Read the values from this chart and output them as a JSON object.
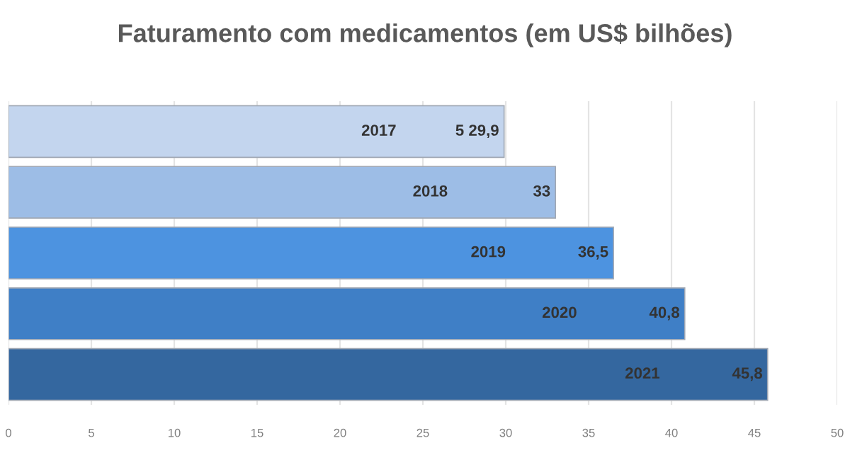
{
  "chart_data": {
    "type": "bar",
    "orientation": "horizontal",
    "title": "Faturamento com medicamentos (em US$ bilhões)",
    "categories": [
      "2017",
      "2018",
      "2019",
      "2020",
      "2021"
    ],
    "values": [
      29.9,
      33,
      36.5,
      40.8,
      45.8
    ],
    "value_labels": [
      "5 29,9",
      "33",
      "36,5",
      "40,8",
      "45,8"
    ],
    "colors": [
      "#c3d5ee",
      "#9dbde6",
      "#4d93e0",
      "#3f7fc6",
      "#34679f"
    ],
    "xlim": [
      0,
      50
    ],
    "xticks": [
      0,
      5,
      10,
      15,
      20,
      25,
      30,
      35,
      40,
      45,
      50
    ],
    "grid": "x"
  }
}
